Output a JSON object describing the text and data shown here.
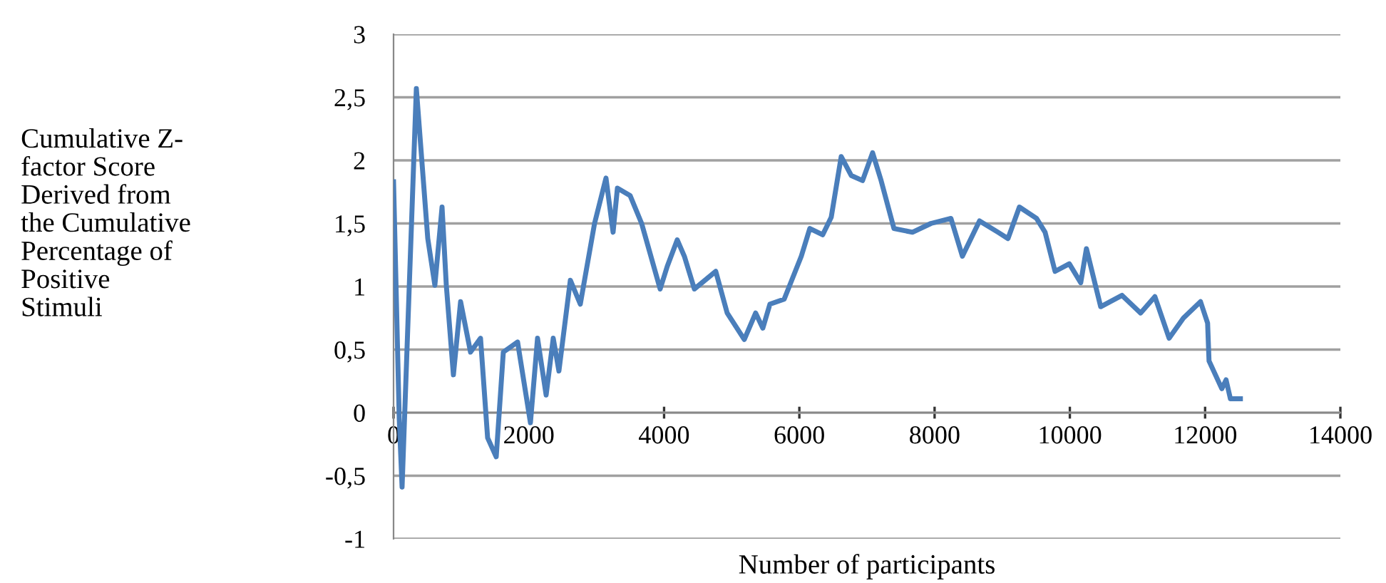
{
  "chart_data": {
    "type": "line",
    "xlabel": "Number of participants",
    "ylabel": "Cumulative Z-\nfactor Score\nDerived from\nthe Cumulative\nPercentage of\nPositive\nStimuli",
    "x": [
      0,
      84,
      126,
      337,
      506,
      611,
      717,
      780,
      885,
      991,
      1138,
      1286,
      1391,
      1518,
      1623,
      1834,
      2024,
      2129,
      2256,
      2361,
      2445,
      2614,
      2761,
      2972,
      3141,
      3246,
      3310,
      3499,
      3668,
      3942,
      4047,
      4195,
      4300,
      4448,
      4764,
      4933,
      5186,
      5354,
      5460,
      5565,
      5776,
      6029,
      6155,
      6345,
      6472,
      6619,
      6767,
      6935,
      7083,
      7209,
      7399,
      7673,
      7947,
      8242,
      8411,
      8664,
      8938,
      9085,
      9254,
      9507,
      9634,
      9781,
      9992,
      10161,
      10245,
      10456,
      10772,
      11046,
      11257,
      11468,
      11679,
      11932,
      12037,
      12058,
      12247,
      12310,
      12374,
      12522
    ],
    "series": [
      {
        "color": "#4a7ebb",
        "values": [
          1.83,
          -0.05,
          -0.59,
          2.57,
          1.38,
          1.01,
          1.63,
          1.01,
          0.3,
          0.88,
          0.48,
          0.59,
          -0.2,
          -0.35,
          0.48,
          0.56,
          -0.08,
          0.59,
          0.14,
          0.59,
          0.33,
          1.05,
          0.86,
          1.5,
          1.86,
          1.43,
          1.78,
          1.72,
          1.5,
          0.98,
          1.16,
          1.37,
          1.24,
          0.98,
          1.12,
          0.79,
          0.58,
          0.79,
          0.67,
          0.86,
          0.9,
          1.24,
          1.46,
          1.41,
          1.55,
          2.03,
          1.88,
          1.84,
          2.06,
          1.84,
          1.46,
          1.43,
          1.5,
          1.54,
          1.24,
          1.52,
          1.43,
          1.38,
          1.63,
          1.54,
          1.43,
          1.12,
          1.18,
          1.03,
          1.3,
          0.84,
          0.93,
          0.79,
          0.92,
          0.59,
          0.75,
          0.88,
          0.71,
          0.41,
          0.19,
          0.26,
          0.11,
          0.11
        ]
      }
    ],
    "xlim": [
      0,
      14000
    ],
    "xticks": [
      0,
      2000,
      4000,
      6000,
      8000,
      10000,
      12000,
      14000
    ],
    "ylim": [
      -1,
      3
    ],
    "yticks": [
      {
        "value": -1,
        "label": "-1"
      },
      {
        "value": -0.5,
        "label": "-0,5"
      },
      {
        "value": 0,
        "label": "0"
      },
      {
        "value": 0.5,
        "label": "0,5"
      },
      {
        "value": 1,
        "label": "1"
      },
      {
        "value": 1.5,
        "label": "1,5"
      },
      {
        "value": 2,
        "label": "2"
      },
      {
        "value": 2.5,
        "label": "2,5"
      },
      {
        "value": 3,
        "label": "3"
      }
    ],
    "grid": "y",
    "marker": "none",
    "line_style": "solid"
  }
}
